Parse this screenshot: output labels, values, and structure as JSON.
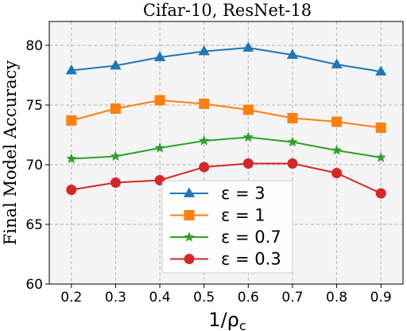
{
  "chart_data": {
    "type": "line",
    "title": "Cifar-10, ResNet-18",
    "xlabel": "1/ρ",
    "xlabel_subscript": "c",
    "ylabel": "Final Model Accuracy",
    "x": [
      0.2,
      0.3,
      0.4,
      0.5,
      0.6,
      0.7,
      0.8,
      0.9
    ],
    "x_tick_labels": [
      "0.2",
      "0.3",
      "0.4",
      "0.5",
      "0.6",
      "0.7",
      "0.8",
      "0.9"
    ],
    "xlim": [
      0.15,
      0.95
    ],
    "ylim": [
      60,
      82
    ],
    "y_ticks": [
      60,
      65,
      70,
      75,
      80
    ],
    "y_tick_labels": [
      "60",
      "65",
      "70",
      "75",
      "80"
    ],
    "grid": true,
    "legend_position": "lower-center",
    "series": [
      {
        "name": "ε = 3",
        "color": "#1f77b4",
        "marker": "triangle",
        "values": [
          77.9,
          78.3,
          79.0,
          79.5,
          79.8,
          79.2,
          78.4,
          77.8
        ]
      },
      {
        "name": "ε = 1",
        "color": "#ff7f0e",
        "marker": "square",
        "values": [
          73.7,
          74.7,
          75.4,
          75.1,
          74.6,
          73.9,
          73.6,
          73.1
        ]
      },
      {
        "name": "ε = 0.7",
        "color": "#2ca02c",
        "marker": "star",
        "values": [
          70.5,
          70.7,
          71.4,
          72.0,
          72.3,
          71.9,
          71.2,
          70.6
        ]
      },
      {
        "name": "ε = 0.3",
        "color": "#d62728",
        "marker": "circle",
        "values": [
          67.9,
          68.5,
          68.7,
          69.8,
          70.1,
          70.1,
          69.3,
          67.6
        ]
      }
    ]
  }
}
